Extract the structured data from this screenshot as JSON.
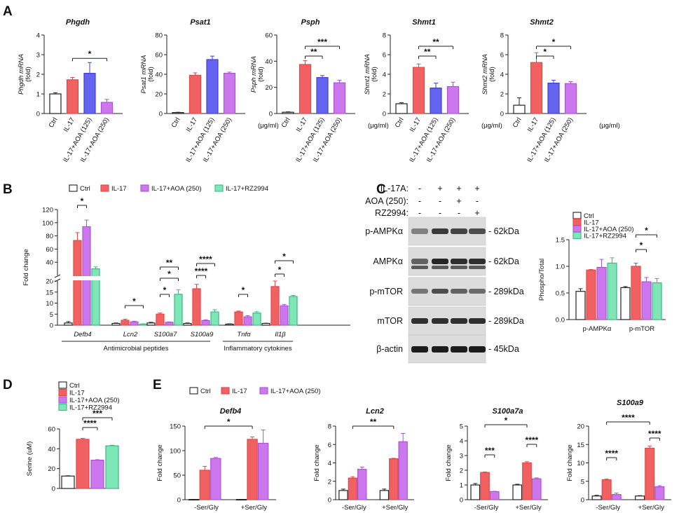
{
  "colors": {
    "ctrl": "#ffffff",
    "il17": "#f26161",
    "aoa125": "#6464f0",
    "aoa250": "#cc77ee",
    "rz": "#7fe6b8",
    "edge_il17": "#e04848",
    "edge_aoa125": "#4040d0",
    "edge_aoa250": "#a955d0",
    "edge_rz": "#3fb884"
  },
  "panels": {
    "a": "A",
    "b": "B",
    "c": "C",
    "d": "D",
    "e": "E"
  },
  "western_blot": {
    "treatments": [
      "IL-17A:",
      "AOA (250):",
      "RZ2994:"
    ],
    "lanes": [
      [
        "-",
        "+",
        "+",
        "+"
      ],
      [
        "-",
        "-",
        "+",
        "-"
      ],
      [
        "-",
        "-",
        "-",
        "+"
      ]
    ],
    "bands": [
      {
        "name": "p-AMPKα",
        "size": "- 62kDa"
      },
      {
        "name": "AMPKα",
        "size": "- 62kDa"
      },
      {
        "name": "p-mTOR",
        "size": "- 289kDa"
      },
      {
        "name": "mTOR",
        "size": "- 289kDa"
      },
      {
        "name": "β-actin",
        "size": "- 45kDa"
      }
    ]
  },
  "chart_data": [
    {
      "id": "A1",
      "type": "bar",
      "title": "Phgdh",
      "ylabel": "Phgdh mRNA (fold)",
      "categories": [
        "Ctrl",
        "IL-17",
        "IL-17+AOA (125)",
        "IL-17+AOA (250)"
      ],
      "groups": [
        "ctrl",
        "il17",
        "aoa125",
        "aoa250"
      ],
      "values": [
        1.0,
        1.72,
        2.05,
        0.57
      ],
      "errors": [
        0.06,
        0.12,
        0.55,
        0.15
      ],
      "ylim": [
        0,
        4
      ],
      "yticks": [
        0,
        1,
        2,
        3,
        4
      ],
      "unit": "",
      "sig": [
        {
          "from": 1,
          "to": 3,
          "label": "*"
        }
      ]
    },
    {
      "id": "A2",
      "type": "bar",
      "title": "Psat1",
      "ylabel": "Psat1 mRNA (fold)",
      "categories": [
        "Ctrl",
        "IL-17",
        "IL-17+AOA (125)",
        "IL-17+AOA (250)"
      ],
      "groups": [
        "ctrl",
        "il17",
        "aoa125",
        "aoa250"
      ],
      "values": [
        1.0,
        39,
        55,
        41
      ],
      "errors": [
        0.3,
        2.5,
        3.5,
        1.2
      ],
      "ylim": [
        0,
        80
      ],
      "yticks": [
        0,
        20,
        40,
        60,
        80
      ],
      "unit": "(μg/ml)",
      "sig": []
    },
    {
      "id": "A3",
      "type": "bar",
      "title": "Psph",
      "ylabel": "Psph mRNA (fold)",
      "categories": [
        "Ctrl",
        "IL-17",
        "IL-17+AOA (125)",
        "IL-17+AOA (250)"
      ],
      "groups": [
        "ctrl",
        "il17",
        "aoa125",
        "aoa250"
      ],
      "values": [
        1.0,
        37.5,
        27.5,
        23.5
      ],
      "errors": [
        0.3,
        3.0,
        1.5,
        2.0
      ],
      "ylim": [
        0,
        60
      ],
      "yticks": [
        0,
        20,
        40,
        60
      ],
      "unit": "(μg/ml)",
      "sig": [
        {
          "from": 1,
          "to": 2,
          "label": "**"
        },
        {
          "from": 1,
          "to": 3,
          "label": "***"
        }
      ]
    },
    {
      "id": "A4",
      "type": "bar",
      "title": "Shmt1",
      "ylabel": "Shmt1 mRNA (fold)",
      "categories": [
        "Ctrl",
        "IL-17",
        "IL-17+AOA (125)",
        "IL-17+AOA (250)"
      ],
      "groups": [
        "ctrl",
        "il17",
        "aoa125",
        "aoa250"
      ],
      "values": [
        1.0,
        4.7,
        2.6,
        2.75
      ],
      "errors": [
        0.1,
        0.35,
        0.5,
        0.45
      ],
      "ylim": [
        0,
        8
      ],
      "yticks": [
        0,
        2,
        4,
        6,
        8
      ],
      "unit": "(μg/ml)",
      "sig": [
        {
          "from": 1,
          "to": 2,
          "label": "**"
        },
        {
          "from": 1,
          "to": 3,
          "label": "**"
        }
      ]
    },
    {
      "id": "A5",
      "type": "bar",
      "title": "Shmt2",
      "ylabel": "Shmt2 mRNA (fold)",
      "categories": [
        "Ctrl",
        "IL-17",
        "IL-17+AOA (125)",
        "IL-17+AOA (250)"
      ],
      "groups": [
        "ctrl",
        "il17",
        "aoa125",
        "aoa250"
      ],
      "values": [
        0.85,
        5.2,
        3.1,
        3.05
      ],
      "errors": [
        0.75,
        1.0,
        0.3,
        0.2
      ],
      "ylim": [
        0,
        8
      ],
      "yticks": [
        0,
        2,
        4,
        6,
        8
      ],
      "unit": "(μg/ml)",
      "sig": [
        {
          "from": 1,
          "to": 2,
          "label": "*"
        },
        {
          "from": 1,
          "to": 3,
          "label": "*"
        }
      ]
    },
    {
      "id": "B",
      "type": "grouped-bar",
      "ylabel": "Fold change",
      "legend": [
        "Ctrl",
        "IL-17",
        "IL-17+AOA (250)",
        "IL-17+RZ2994"
      ],
      "groups": [
        "ctrl",
        "il17",
        "aoa250",
        "rz"
      ],
      "categories": [
        "Defb4",
        "Lcn2",
        "S100a7",
        "S100a9",
        "Tnfα",
        "Il1β"
      ],
      "category_groups": [
        {
          "label": "Antimicrobial peptides",
          "span": [
            0,
            3
          ]
        },
        {
          "label": "Inflammatory cytokines",
          "span": [
            4,
            5
          ]
        }
      ],
      "series": [
        {
          "name": "Ctrl",
          "values": [
            1,
            0.8,
            1.0,
            0.8,
            0.5,
            0.8
          ],
          "errors": [
            0.6,
            0.2,
            0.3,
            0.2,
            0.1,
            0.1
          ]
        },
        {
          "name": "IL-17",
          "values": [
            73,
            2.2,
            5.0,
            16.5,
            6.0,
            17.5
          ],
          "errors": [
            12,
            0.5,
            0.5,
            2.0,
            0.4,
            2.5
          ]
        },
        {
          "name": "IL-17+AOA (250)",
          "values": [
            94,
            1.5,
            1.3,
            2.1,
            3.8,
            8.8
          ],
          "errors": [
            10,
            0.3,
            0.2,
            0.3,
            0.5,
            0.6
          ]
        },
        {
          "name": "IL-17+RZ2994",
          "values": [
            30,
            0.5,
            14,
            6.0,
            5.5,
            13
          ],
          "errors": [
            3,
            0.1,
            2.0,
            1.0,
            0.6,
            0.5
          ]
        }
      ],
      "yticks": [
        0,
        5,
        10,
        15,
        20,
        40,
        60,
        80,
        100,
        120
      ],
      "axis_break": [
        20,
        30
      ],
      "sig": [
        {
          "cat": 0,
          "from": 1,
          "to": 2,
          "label": "*"
        },
        {
          "cat": 1,
          "from": 1,
          "to": 3,
          "label": "*"
        },
        {
          "cat": 2,
          "from": 1,
          "to": 2,
          "label": "*"
        },
        {
          "cat": 2,
          "from": 1,
          "to": 3,
          "label": "*"
        },
        {
          "cat": 2,
          "from": 1,
          "to": 3,
          "label": "**"
        },
        {
          "cat": 3,
          "from": 1,
          "to": 2,
          "label": "****"
        },
        {
          "cat": 3,
          "from": 1,
          "to": 3,
          "label": "****"
        },
        {
          "cat": 4,
          "from": 1,
          "to": 2,
          "label": "*"
        },
        {
          "cat": 5,
          "from": 1,
          "to": 2,
          "label": "*"
        },
        {
          "cat": 5,
          "from": 1,
          "to": 3,
          "label": "*"
        }
      ]
    },
    {
      "id": "C",
      "type": "grouped-bar",
      "ylabel": "Phospho/Total",
      "legend": [
        "Ctrl",
        "IL-17",
        "IL-17+AOA (250)",
        "IL-17+RZ2994"
      ],
      "groups": [
        "ctrl",
        "il17",
        "aoa250",
        "rz"
      ],
      "categories": [
        "p-AMPKα",
        "p-mTOR"
      ],
      "series": [
        {
          "name": "Ctrl",
          "values": [
            0.53,
            0.6
          ],
          "errors": [
            0.05,
            0.02
          ]
        },
        {
          "name": "IL-17",
          "values": [
            0.93,
            1.0
          ],
          "errors": [
            0.01,
            0.06
          ]
        },
        {
          "name": "IL-17+AOA (250)",
          "values": [
            0.98,
            0.71
          ],
          "errors": [
            0.15,
            0.08
          ]
        },
        {
          "name": "IL-17+RZ2994",
          "values": [
            1.06,
            0.69
          ],
          "errors": [
            0.1,
            0.08
          ]
        }
      ],
      "ylim": [
        0,
        1.5
      ],
      "yticks": [
        0.0,
        0.5,
        1.0,
        1.5
      ],
      "sig": [
        {
          "cat": 1,
          "from": 1,
          "to": 2,
          "label": "*"
        },
        {
          "cat": 1,
          "from": 1,
          "to": 3,
          "label": "*"
        }
      ]
    },
    {
      "id": "D",
      "type": "bar",
      "ylabel": "Serine (uM)",
      "legend": [
        "Ctrl",
        "IL-17",
        "IL-17+AOA (250)",
        "IL-17+RZ2994"
      ],
      "groups": [
        "ctrl",
        "il17",
        "aoa250",
        "rz"
      ],
      "values": [
        12.5,
        49.5,
        28.5,
        43.0
      ],
      "errors": [
        0.3,
        1.0,
        0.5,
        0.6
      ],
      "ylim": [
        0,
        60
      ],
      "yticks": [
        0,
        20,
        40,
        60
      ],
      "sig": [
        {
          "from": 1,
          "to": 2,
          "label": "****"
        },
        {
          "from": 1,
          "to": 3,
          "label": "***"
        }
      ]
    },
    {
      "id": "E1",
      "type": "grouped-bar",
      "title": "Defb4",
      "ylabel": "Fold change",
      "legend": [
        "Ctrl",
        "IL-17",
        "IL-17+AOA (250)"
      ],
      "groups": [
        "ctrl",
        "il17",
        "aoa250"
      ],
      "categories": [
        "-Ser/Gly",
        "+Ser/Gly"
      ],
      "series": [
        {
          "name": "Ctrl",
          "values": [
            0.5,
            0.5
          ],
          "errors": [
            0.2,
            0.2
          ]
        },
        {
          "name": "IL-17",
          "values": [
            60,
            123
          ],
          "errors": [
            8,
            5
          ]
        },
        {
          "name": "IL-17+AOA (250)",
          "values": [
            84,
            115
          ],
          "errors": [
            2,
            27
          ]
        }
      ],
      "ylim": [
        0,
        150
      ],
      "yticks": [
        0,
        50,
        100,
        150
      ],
      "sig": [
        {
          "from": [
            0,
            1
          ],
          "to": [
            1,
            1
          ],
          "label": "*"
        }
      ]
    },
    {
      "id": "E2",
      "type": "grouped-bar",
      "title": "Lcn2",
      "ylabel": "Fold change",
      "categories": [
        "-Ser/Gly",
        "+Ser/Gly"
      ],
      "groups": [
        "ctrl",
        "il17",
        "aoa250"
      ],
      "series": [
        {
          "name": "Ctrl",
          "values": [
            1.0,
            1.0
          ],
          "errors": [
            0.15,
            0.15
          ]
        },
        {
          "name": "IL-17",
          "values": [
            2.35,
            4.45
          ],
          "errors": [
            0.15,
            0.05
          ]
        },
        {
          "name": "IL-17+AOA (250)",
          "values": [
            3.3,
            6.3
          ],
          "errors": [
            0.25,
            0.9
          ]
        }
      ],
      "ylim": [
        0,
        8
      ],
      "yticks": [
        0,
        2,
        4,
        6,
        8
      ],
      "sig": [
        {
          "from": [
            0,
            1
          ],
          "to": [
            1,
            1
          ],
          "label": "**"
        }
      ]
    },
    {
      "id": "E3",
      "type": "grouped-bar",
      "title": "S100a7a",
      "ylabel": "Fold change",
      "categories": [
        "-Ser/Gly",
        "+Ser/Gly"
      ],
      "groups": [
        "ctrl",
        "il17",
        "aoa250"
      ],
      "series": [
        {
          "name": "Ctrl",
          "values": [
            1.0,
            1.0
          ],
          "errors": [
            0.1,
            0.05
          ]
        },
        {
          "name": "IL-17",
          "values": [
            1.85,
            2.5
          ],
          "errors": [
            0.03,
            0.08
          ]
        },
        {
          "name": "IL-17+AOA (250)",
          "values": [
            0.55,
            1.42
          ],
          "errors": [
            0.02,
            0.06
          ]
        }
      ],
      "ylim": [
        0,
        5
      ],
      "yticks": [
        0,
        1,
        2,
        3,
        4,
        5
      ],
      "sig": [
        {
          "from": [
            0,
            1
          ],
          "to": [
            1,
            1
          ],
          "label": "*"
        },
        {
          "from": [
            0,
            1
          ],
          "to": [
            0,
            2
          ],
          "label": "***"
        },
        {
          "from": [
            1,
            1
          ],
          "to": [
            1,
            2
          ],
          "label": "****"
        }
      ]
    },
    {
      "id": "E4",
      "type": "grouped-bar",
      "title": "S100a9",
      "ylabel": "Fold change",
      "categories": [
        "-Ser/Gly",
        "+Ser/Gly"
      ],
      "groups": [
        "ctrl",
        "il17",
        "aoa250"
      ],
      "series": [
        {
          "name": "Ctrl",
          "values": [
            1.0,
            1.0
          ],
          "errors": [
            0.2,
            0.1
          ]
        },
        {
          "name": "IL-17",
          "values": [
            5.4,
            14.0
          ],
          "errors": [
            0.2,
            0.6
          ]
        },
        {
          "name": "IL-17+AOA (250)",
          "values": [
            1.4,
            3.5
          ],
          "errors": [
            0.4,
            0.3
          ]
        }
      ],
      "ylim": [
        0,
        20
      ],
      "yticks": [
        0,
        5,
        10,
        15,
        20
      ],
      "sig": [
        {
          "from": [
            0,
            1
          ],
          "to": [
            1,
            1
          ],
          "label": "****"
        },
        {
          "from": [
            0,
            1
          ],
          "to": [
            0,
            2
          ],
          "label": "****"
        },
        {
          "from": [
            1,
            1
          ],
          "to": [
            1,
            2
          ],
          "label": "****"
        }
      ]
    }
  ]
}
